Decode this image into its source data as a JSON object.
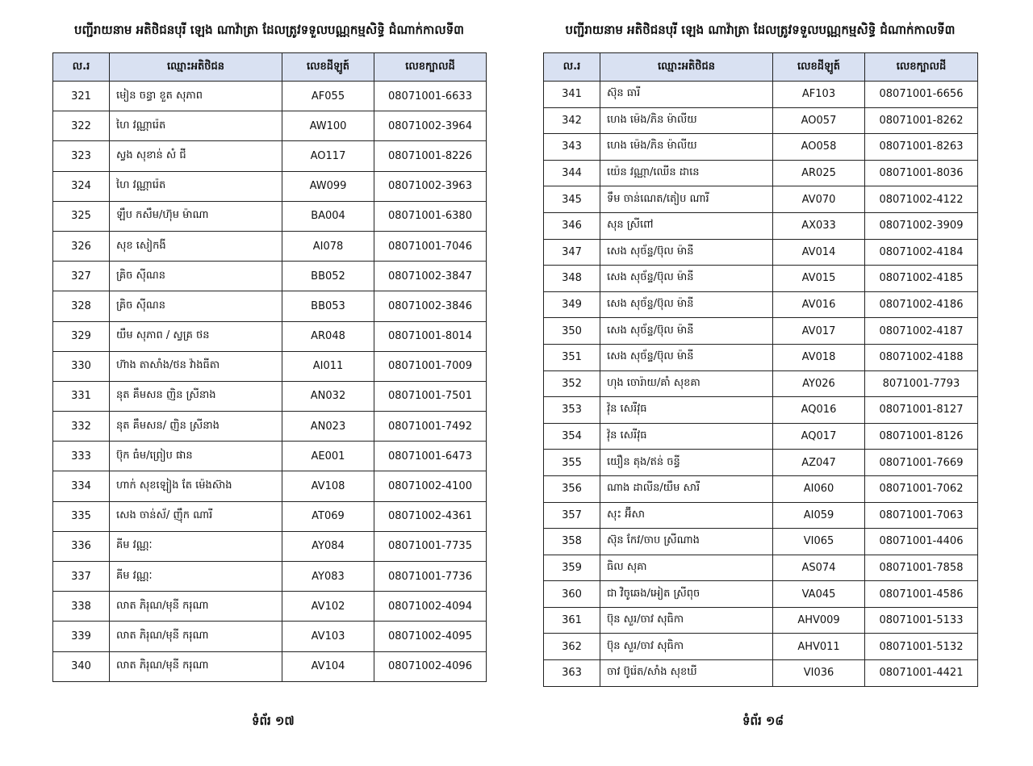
{
  "pages": [
    {
      "title": "បញ្ជីរាយនាម អតិថិជនបុរី ឡេង ណាវ៉ាត្រា ដែលត្រូវទទួលបណ្ណកម្មសិទ្ធិ ជំណាក់កាលទី៣",
      "headers": [
        "ល.រ",
        "ឈ្មោះអតិថិជន",
        "លេខដីឡូត៍",
        "លេខក្បាលដី"
      ],
      "footer": "ទំព័រ ១៧",
      "rows": [
        [
          "321",
          "មៀន ចន្ធា ខួត សុភាព",
          "AF055",
          "08071001-6633"
        ],
        [
          "322",
          "ហៃ វណ្ណារ៉េត",
          "AW100",
          "08071002-3964"
        ],
        [
          "323",
          "ស្វង សុខាន់ សំ ជី",
          "AO117",
          "08071001-8226"
        ],
        [
          "324",
          "ហៃ វណ្ណារ៉េត",
          "AW099",
          "08071002-3963"
        ],
        [
          "325",
          "ឡឹប កសឹម/ហ៊ុម ម៉ាណា",
          "BA004",
          "08071001-6380"
        ],
        [
          "326",
          "សុខ សៀកងី",
          "AI078",
          "08071001-7046"
        ],
        [
          "327",
          "គ្រិច ស៊ីណន",
          "BB052",
          "08071002-3847"
        ],
        [
          "328",
          "គ្រិច ស៊ីណន",
          "BB053",
          "08071002-3846"
        ],
        [
          "329",
          "យឹម សុភាព / ស្វគ្រ ថន",
          "AR048",
          "08071001-8014"
        ],
        [
          "330",
          "ហ៊ាង តាសាំង/ថន វ៉ាងធីតា",
          "AI011",
          "08071001-7009"
        ],
        [
          "331",
          "នុត គឹមសន ញិន ស្រីនាង",
          "AN032",
          "08071001-7501"
        ],
        [
          "332",
          "នុត គឹមសន/ ញិន ស្រីនាង",
          "AN023",
          "08071001-7492"
        ],
        [
          "333",
          "ប៊ុក ធំម/ព្រៀប ផាន",
          "AE001",
          "08071001-6473"
        ],
        [
          "334",
          "ហាក់ សុខឡៀង តែ ម៉េងស៊ាង",
          "AV108",
          "08071002-4100"
        ],
        [
          "335",
          "សេង ចាន់ស័/ ញ៉ឹក ណារី",
          "AT069",
          "08071002-4361"
        ],
        [
          "336",
          "គីម វណ្ណៈ",
          "AY084",
          "08071001-7735"
        ],
        [
          "337",
          "គីម វណ្ណៈ",
          "AY083",
          "08071001-7736"
        ],
        [
          "338",
          "លាត ភិរុណ/មុនី ករុណា",
          "AV102",
          "08071002-4094"
        ],
        [
          "339",
          "លាត ភិរុណ/មុនី ករុណា",
          "AV103",
          "08071002-4095"
        ],
        [
          "340",
          "លាត ភិរុណ/មុនី ករុណា",
          "AV104",
          "08071002-4096"
        ]
      ]
    },
    {
      "title": "បញ្ជីរាយនាម អតិថិជនបុរី ឡេង ណាវ៉ាត្រា ដែលត្រូវទទួលបណ្ណកម្មសិទ្ធិ ជំណាក់កាលទី៣",
      "headers": [
        "ល.រ",
        "ឈ្មោះអតិថិជន",
        "លេខដីឡូត៍",
        "លេខក្បាលដី"
      ],
      "footer": "ទំព័រ ១៨",
      "rows": [
        [
          "341",
          "ស៊ុន ធារី",
          "AF103",
          "08071001-6656"
        ],
        [
          "342",
          "ហេង ម៉េង/ភិន ម៉ាលីយ",
          "AO057",
          "08071001-8262"
        ],
        [
          "343",
          "ហេង ម៉េង/ភិន ម៉ាលីយ",
          "AO058",
          "08071001-8263"
        ],
        [
          "344",
          "យ៉េន វណ្ណា/ឈើន ដានេ",
          "AR025",
          "08071001-8036"
        ],
        [
          "345",
          "ទឹម ចាន់ណេត/តៀប ណារី",
          "AV070",
          "08071002-4122"
        ],
        [
          "346",
          "សុន ស្រីពៅ",
          "AX033",
          "08071002-3909"
        ],
        [
          "347",
          "សេង សុច័ន្ទ/ប៊ុល ម៉ានី",
          "AV014",
          "08071002-4184"
        ],
        [
          "348",
          "សេង សុច័ន្ទ/ប៊ុល ម៉ានី",
          "AV015",
          "08071002-4185"
        ],
        [
          "349",
          "សេង សុច័ន្ទ/ប៊ុល ម៉ានី",
          "AV016",
          "08071002-4186"
        ],
        [
          "350",
          "សេង សុច័ន្ទ/ប៊ុល ម៉ានី",
          "AV017",
          "08071002-4187"
        ],
        [
          "351",
          "សេង សុច័ន្ទ/ប៊ុល ម៉ានី",
          "AV018",
          "08071002-4188"
        ],
        [
          "352",
          "ហុង ចោរ៉ាយ/គាំ សុខគា",
          "AY026",
          "8071001-7793"
        ],
        [
          "353",
          "វ៉ុន សេរីវុធ",
          "AQ016",
          "08071001-8127"
        ],
        [
          "354",
          "វ៉ុន សេរីវុធ",
          "AQ017",
          "08071001-8126"
        ],
        [
          "355",
          "យឿន តុង/ឥន់ ចន្ធី",
          "AZ047",
          "08071001-7669"
        ],
        [
          "356",
          "ណាង ដាលីន/យឹម សារី",
          "AI060",
          "08071001-7062"
        ],
        [
          "357",
          "សុះ អ៊ីសា",
          "AI059",
          "08071001-7063"
        ],
        [
          "358",
          "ស៊ុន កែវ/ចាប ស្រីណាង",
          "VI065",
          "08071001-4406"
        ],
        [
          "359",
          "ធិល សុគា",
          "AS074",
          "08071001-7858"
        ],
        [
          "360",
          "ជា វិចូឆេង/អៀត ស្រីពុច",
          "VA045",
          "08071001-4586"
        ],
        [
          "361",
          "ប៊ុន សួរ/ចាវ សុធិកា",
          "AHV009",
          "08071001-5133"
        ],
        [
          "362",
          "ប៊ុន សួរ/ចាវ សុធិកា",
          "AHV011",
          "08071001-5132"
        ],
        [
          "363",
          "ចាវ ប៊ូរ៉េត/សាំង សុខឃី",
          "VI036",
          "08071001-4421"
        ]
      ]
    }
  ],
  "colors": {
    "header_fill": "#d9e1f2",
    "border": "#222222"
  }
}
